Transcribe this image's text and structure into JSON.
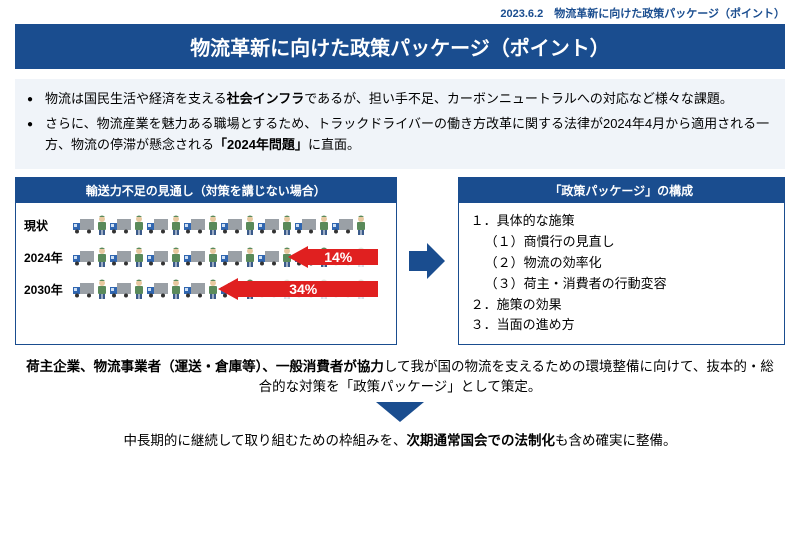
{
  "header": {
    "date_label": "2023.6.2　物流革新に向けた政策パッケージ（ポイント）"
  },
  "title": "物流革新に向けた政策パッケージ（ポイント）",
  "intro": {
    "b1a": "物流は国民生活や経済を支える",
    "b1b": "社会インフラ",
    "b1c": "であるが、担い手不足、カーボンニュートラルへの対応など様々な課題。",
    "b2a": "さらに、物流産業を魅力ある職場とするため、トラックドライバーの働き方改革に関する法律が2024年4月から適用される一方、物流の停滞が懸念される",
    "b2b": "「2024年問題」",
    "b2c": "に直面。"
  },
  "left": {
    "header": "輸送力不足の見通し（対策を講じない場合）",
    "rows": [
      {
        "label": "現状",
        "total": 8,
        "faded": 0,
        "arrow_width": 0,
        "pct": ""
      },
      {
        "label": "2024年",
        "total": 8,
        "faded": 1,
        "arrow_width": 90,
        "pct": "14%"
      },
      {
        "label": "2030年",
        "total": 8,
        "faded": 3,
        "arrow_width": 160,
        "pct": "34%"
      }
    ],
    "colors": {
      "truck_body": "#3066b0",
      "truck_box": "#9aa0a6",
      "worker": "#5a8a5a",
      "arrow": "#e02020"
    }
  },
  "right": {
    "header": "「政策パッケージ」の構成",
    "items": {
      "i1": "１．具体的な施策",
      "s1": "（１）商慣行の見直し",
      "s2": "（２）物流の効率化",
      "s3": "（３）荷主・消費者の行動変容",
      "i2": "２．施策の効果",
      "i3": "３．当面の進め方"
    }
  },
  "bottom": {
    "t1a": "荷主企業、物流事業者（運送・倉庫等）、一般消費者が協力",
    "t1b": "して我が国の物流を支えるための環境整備に向けて、抜本的・総合的な対策を「政策パッケージ」として策定。",
    "t2a": "中長期的に継続して取り組むための枠組みを、",
    "t2b": "次期通常国会での法制化",
    "t2c": "も含め確実に整備。"
  },
  "colors": {
    "brand": "#1a4d8f",
    "intro_bg": "#f0f4f9"
  }
}
